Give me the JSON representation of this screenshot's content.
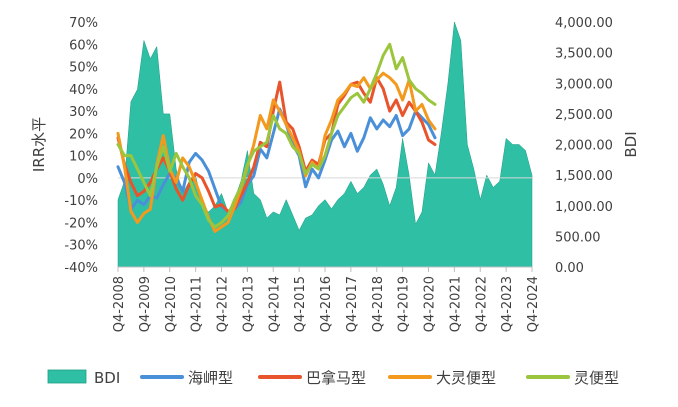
{
  "chart_data": {
    "type": "line",
    "title": "",
    "ylabel": "IRR水平",
    "y2label": "BDI",
    "ylim": [
      -0.4,
      0.7
    ],
    "y2lim": [
      0,
      4000
    ],
    "y_ticks": [
      "70%",
      "60%",
      "50%",
      "40%",
      "30%",
      "20%",
      "10%",
      "0%",
      "-10%",
      "-20%",
      "-30%",
      "-40%"
    ],
    "y2_ticks": [
      "4,000.00",
      "3,500.00",
      "3,000.00",
      "2,500.00",
      "2,000.00",
      "1,500.00",
      "1,000.00",
      "500.00",
      "0.00"
    ],
    "x_ticks": [
      "Q4-2008",
      "Q4-2009",
      "Q4-2010",
      "Q4-2011",
      "Q4-2012",
      "Q4-2013",
      "Q4-2014",
      "Q4-2015",
      "Q4-2016",
      "Q4-2017",
      "Q4-2018",
      "Q4-2019",
      "Q4-2020",
      "Q4-2021",
      "Q4-2022",
      "Q4-2023",
      "Q4-2024"
    ],
    "x_start": 2008.75,
    "x_end": 2024.75,
    "legend": [
      "BDI",
      "海岬型",
      "巴拿马型",
      "大灵便型",
      "灵便型"
    ],
    "legend_position": "bottom",
    "series": [
      {
        "name": "BDI",
        "kind": "area",
        "axis": "right",
        "color": "#2EBFA5",
        "x": [
          2008.75,
          2009.0,
          2009.25,
          2009.5,
          2009.75,
          2010.0,
          2010.25,
          2010.5,
          2010.75,
          2011.0,
          2011.25,
          2011.5,
          2011.75,
          2012.0,
          2012.25,
          2012.5,
          2012.75,
          2013.0,
          2013.25,
          2013.5,
          2013.75,
          2014.0,
          2014.25,
          2014.5,
          2014.75,
          2015.0,
          2015.25,
          2015.5,
          2015.75,
          2016.0,
          2016.25,
          2016.5,
          2016.75,
          2017.0,
          2017.25,
          2017.5,
          2017.75,
          2018.0,
          2018.25,
          2018.5,
          2018.75,
          2019.0,
          2019.25,
          2019.5,
          2019.75,
          2020.0,
          2020.25,
          2020.5,
          2020.75,
          2021.0,
          2021.25,
          2021.5,
          2021.75,
          2022.0,
          2022.25,
          2022.5,
          2022.75,
          2023.0,
          2023.25,
          2023.5,
          2023.75,
          2024.0,
          2024.25,
          2024.5,
          2024.75
        ],
        "values": [
          1100,
          1400,
          2700,
          2900,
          3700,
          3400,
          3600,
          2500,
          2500,
          1600,
          1200,
          1400,
          1500,
          1000,
          900,
          1000,
          1200,
          900,
          1100,
          1400,
          1900,
          1200,
          1100,
          800,
          900,
          850,
          1100,
          850,
          600,
          800,
          850,
          1000,
          1100,
          950,
          1100,
          1200,
          1400,
          1200,
          1300,
          1500,
          1600,
          1350,
          1000,
          1300,
          2100,
          1500,
          700,
          900,
          1700,
          1500,
          2200,
          3000,
          4000,
          3700,
          2000,
          1600,
          1100,
          1500,
          1300,
          1400,
          2100,
          2000,
          2000,
          1900,
          1500
        ]
      },
      {
        "name": "海岬型",
        "kind": "line",
        "axis": "left",
        "color": "#4A90D9",
        "x": [
          2008.75,
          2009.0,
          2009.25,
          2009.5,
          2009.75,
          2010.0,
          2010.25,
          2010.5,
          2010.75,
          2011.0,
          2011.25,
          2011.5,
          2011.75,
          2012.0,
          2012.25,
          2012.5,
          2012.75,
          2013.0,
          2013.25,
          2013.5,
          2013.75,
          2014.0,
          2014.25,
          2014.5,
          2014.75,
          2015.0,
          2015.25,
          2015.5,
          2015.75,
          2016.0,
          2016.25,
          2016.5,
          2016.75,
          2017.0,
          2017.25,
          2017.5,
          2017.75,
          2018.0,
          2018.25,
          2018.5,
          2018.75,
          2019.0,
          2019.25,
          2019.5,
          2019.75,
          2020.0,
          2020.25,
          2020.5,
          2020.75,
          2021.0
        ],
        "values": [
          0.05,
          -0.02,
          -0.14,
          -0.1,
          -0.12,
          -0.08,
          -0.09,
          -0.03,
          0.02,
          0.0,
          -0.06,
          0.07,
          0.11,
          0.08,
          0.03,
          -0.05,
          -0.13,
          -0.15,
          -0.14,
          -0.11,
          -0.03,
          0.01,
          0.13,
          0.09,
          0.2,
          0.31,
          0.24,
          0.15,
          0.1,
          -0.04,
          0.04,
          0.0,
          0.08,
          0.17,
          0.21,
          0.14,
          0.2,
          0.12,
          0.18,
          0.27,
          0.22,
          0.26,
          0.23,
          0.28,
          0.19,
          0.22,
          0.3,
          0.27,
          0.24,
          0.18
        ]
      },
      {
        "name": "巴拿马型",
        "kind": "line",
        "axis": "left",
        "color": "#E8542B",
        "x": [
          2008.75,
          2009.0,
          2009.25,
          2009.5,
          2009.75,
          2010.0,
          2010.25,
          2010.5,
          2010.75,
          2011.0,
          2011.25,
          2011.5,
          2011.75,
          2012.0,
          2012.25,
          2012.5,
          2012.75,
          2013.0,
          2013.25,
          2013.5,
          2013.75,
          2014.0,
          2014.25,
          2014.5,
          2014.75,
          2015.0,
          2015.25,
          2015.5,
          2015.75,
          2016.0,
          2016.25,
          2016.5,
          2016.75,
          2017.0,
          2017.25,
          2017.5,
          2017.75,
          2018.0,
          2018.25,
          2018.5,
          2018.75,
          2019.0,
          2019.25,
          2019.5,
          2019.75,
          2020.0,
          2020.25,
          2020.5,
          2020.75,
          2021.0
        ],
        "values": [
          0.18,
          0.06,
          -0.02,
          -0.08,
          -0.06,
          -0.02,
          0.04,
          0.09,
          0.03,
          -0.05,
          -0.1,
          -0.03,
          0.02,
          0.0,
          -0.06,
          -0.13,
          -0.12,
          -0.15,
          -0.14,
          -0.08,
          -0.02,
          0.05,
          0.16,
          0.14,
          0.3,
          0.43,
          0.25,
          0.22,
          0.14,
          0.03,
          0.08,
          0.06,
          0.17,
          0.2,
          0.33,
          0.37,
          0.42,
          0.43,
          0.38,
          0.34,
          0.45,
          0.4,
          0.3,
          0.35,
          0.28,
          0.34,
          0.3,
          0.25,
          0.17,
          0.15
        ]
      },
      {
        "name": "大灵便型",
        "kind": "line",
        "axis": "left",
        "color": "#F39A1E",
        "x": [
          2008.75,
          2009.0,
          2009.25,
          2009.5,
          2009.75,
          2010.0,
          2010.25,
          2010.5,
          2010.75,
          2011.0,
          2011.25,
          2011.5,
          2011.75,
          2012.0,
          2012.25,
          2012.5,
          2012.75,
          2013.0,
          2013.25,
          2013.5,
          2013.75,
          2014.0,
          2014.25,
          2014.5,
          2014.75,
          2015.0,
          2015.25,
          2015.5,
          2015.75,
          2016.0,
          2016.25,
          2016.5,
          2016.75,
          2017.0,
          2017.25,
          2017.5,
          2017.75,
          2018.0,
          2018.25,
          2018.5,
          2018.75,
          2019.0,
          2019.25,
          2019.5,
          2019.75,
          2020.0,
          2020.25,
          2020.5,
          2020.75,
          2021.0
        ],
        "values": [
          0.2,
          0.05,
          -0.15,
          -0.2,
          -0.16,
          -0.14,
          0.06,
          0.19,
          0.04,
          -0.02,
          0.09,
          0.05,
          -0.02,
          -0.1,
          -0.18,
          -0.24,
          -0.22,
          -0.2,
          -0.13,
          -0.05,
          0.05,
          0.15,
          0.28,
          0.22,
          0.35,
          0.3,
          0.24,
          0.18,
          0.12,
          0.01,
          0.07,
          0.04,
          0.19,
          0.26,
          0.35,
          0.38,
          0.42,
          0.41,
          0.45,
          0.4,
          0.44,
          0.47,
          0.45,
          0.42,
          0.35,
          0.44,
          0.3,
          0.33,
          0.26,
          0.22
        ]
      },
      {
        "name": "灵便型",
        "kind": "line",
        "axis": "left",
        "color": "#9BC53D",
        "x": [
          2008.75,
          2009.0,
          2009.25,
          2009.5,
          2009.75,
          2010.0,
          2010.25,
          2010.5,
          2010.75,
          2011.0,
          2011.25,
          2011.5,
          2011.75,
          2012.0,
          2012.25,
          2012.5,
          2012.75,
          2013.0,
          2013.25,
          2013.5,
          2013.75,
          2014.0,
          2014.25,
          2014.5,
          2014.75,
          2015.0,
          2015.25,
          2015.5,
          2015.75,
          2016.0,
          2016.25,
          2016.5,
          2016.75,
          2017.0,
          2017.25,
          2017.5,
          2017.75,
          2018.0,
          2018.25,
          2018.5,
          2018.75,
          2019.0,
          2019.25,
          2019.5,
          2019.75,
          2020.0,
          2020.25,
          2020.5,
          2020.75,
          2021.0
        ],
        "values": [
          0.15,
          0.1,
          0.1,
          0.04,
          -0.02,
          -0.08,
          0.05,
          0.14,
          0.03,
          0.11,
          0.05,
          0.0,
          -0.08,
          -0.12,
          -0.19,
          -0.22,
          -0.2,
          -0.17,
          -0.1,
          -0.04,
          0.06,
          0.12,
          0.14,
          0.16,
          0.28,
          0.22,
          0.2,
          0.14,
          0.11,
          0.02,
          0.06,
          0.04,
          0.1,
          0.2,
          0.28,
          0.32,
          0.36,
          0.38,
          0.34,
          0.4,
          0.47,
          0.55,
          0.6,
          0.49,
          0.54,
          0.44,
          0.4,
          0.38,
          0.35,
          0.33
        ]
      }
    ]
  }
}
